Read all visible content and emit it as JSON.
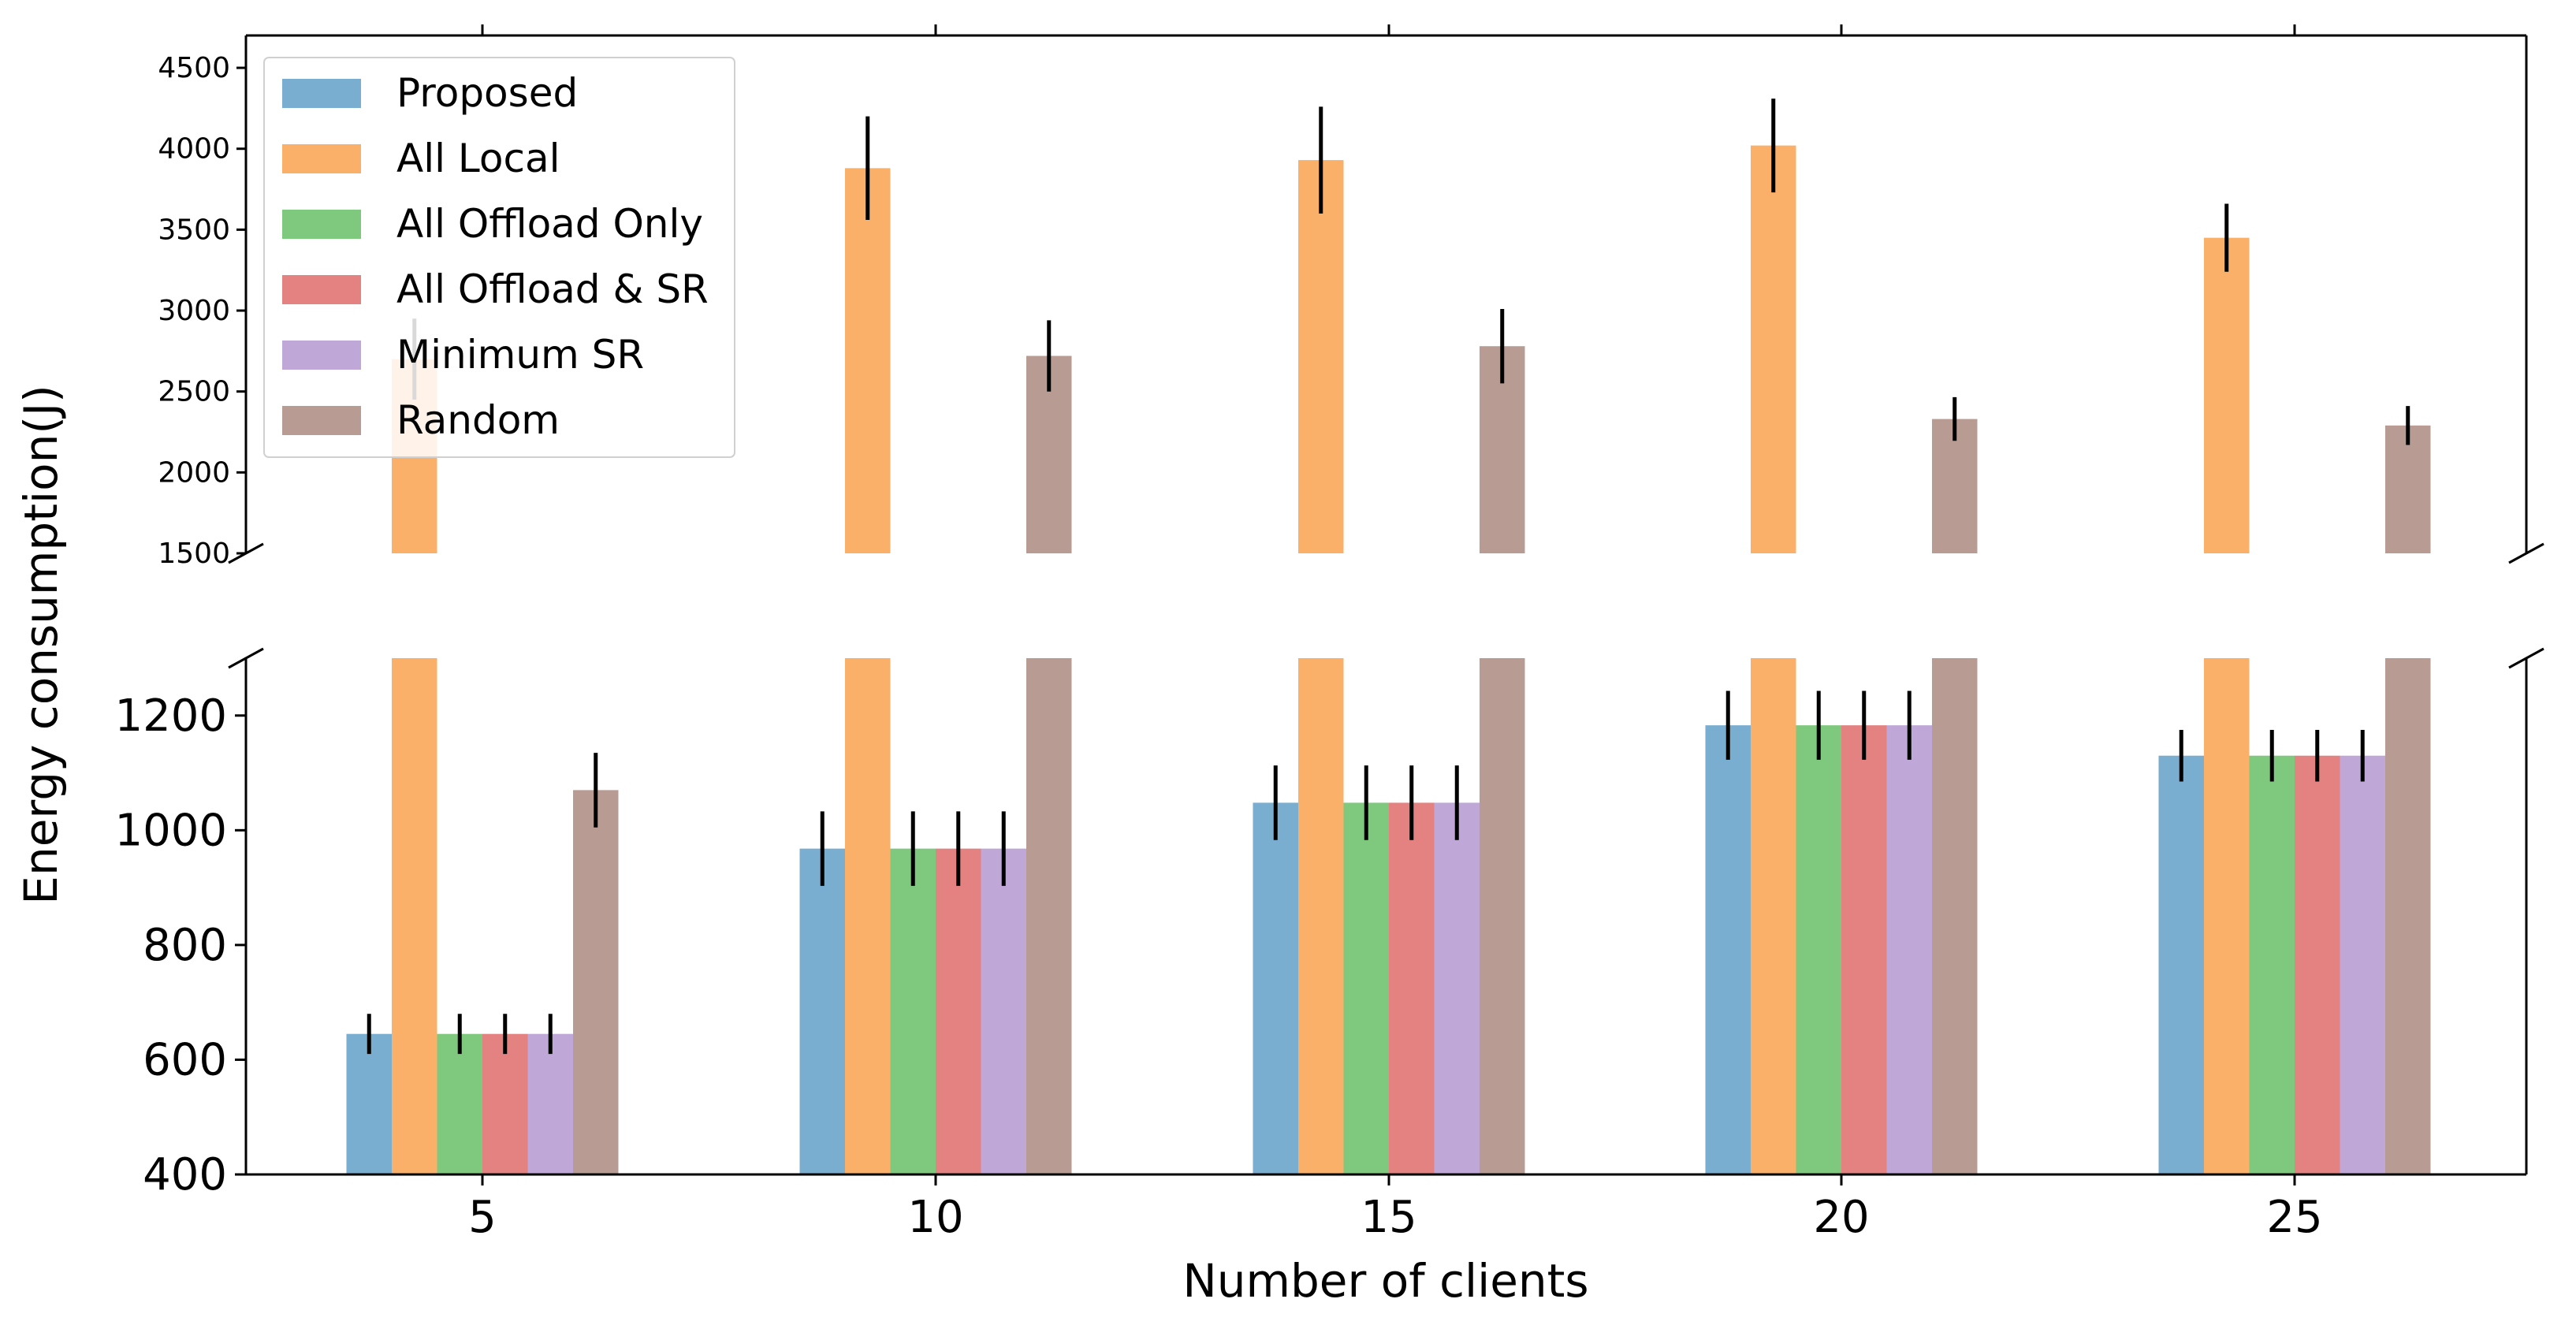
{
  "chart_data": {
    "type": "bar",
    "title": "",
    "xlabel": "Number of clients",
    "ylabel": "Energy consumption(J)",
    "categories": [
      "5",
      "10",
      "15",
      "20",
      "25"
    ],
    "broken_y_axis": true,
    "ylim_upper": [
      1500,
      4700
    ],
    "ylim_lower": [
      400,
      1300
    ],
    "yticks_upper": [
      "1500",
      "2000",
      "2500",
      "3000",
      "3500",
      "4000",
      "4500"
    ],
    "yticks_lower": [
      "400",
      "600",
      "800",
      "1000",
      "1200"
    ],
    "legend_position": "top-left",
    "grid": false,
    "series": [
      {
        "name": "Proposed",
        "color": "#7aaed1",
        "values": [
          645,
          968,
          1048,
          1183,
          1130
        ],
        "errors": [
          35,
          65,
          65,
          60,
          45
        ]
      },
      {
        "name": "All Local",
        "color": "#fbb06a",
        "values": [
          2700,
          3880,
          3930,
          4020,
          3450
        ],
        "errors": [
          250,
          320,
          330,
          290,
          210
        ]
      },
      {
        "name": "All Offload Only",
        "color": "#7fc97f",
        "values": [
          645,
          968,
          1048,
          1183,
          1130
        ],
        "errors": [
          35,
          65,
          65,
          60,
          45
        ]
      },
      {
        "name": "All Offload & SR",
        "color": "#e48181",
        "values": [
          645,
          968,
          1048,
          1183,
          1130
        ],
        "errors": [
          35,
          65,
          65,
          60,
          45
        ]
      },
      {
        "name": "Minimum SR",
        "color": "#bfa8d8",
        "values": [
          645,
          968,
          1048,
          1183,
          1130
        ],
        "errors": [
          35,
          65,
          65,
          60,
          45
        ]
      },
      {
        "name": "Random",
        "color": "#b89c94",
        "values": [
          1070,
          2720,
          2780,
          2330,
          2290
        ],
        "errors": [
          65,
          220,
          230,
          135,
          120
        ]
      }
    ]
  }
}
